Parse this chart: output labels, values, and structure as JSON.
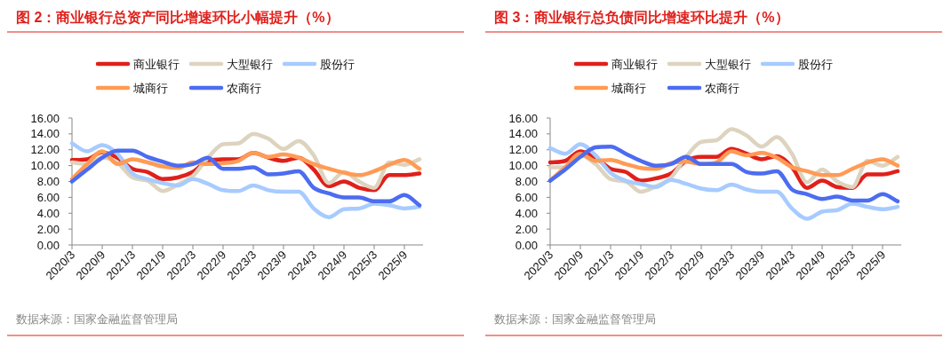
{
  "chart_data": [
    {
      "type": "line",
      "title": "图 2：商业银行总资产同比增速环比小幅提升（%）",
      "annotations": [
        "数据来源：国家金融监督管理局"
      ],
      "categories": [
        "2020/3",
        null,
        "2020/9",
        null,
        "2021/3",
        null,
        "2021/9",
        null,
        "2022/3",
        null,
        "2022/9",
        null,
        "2023/3",
        null,
        "2023/9",
        null,
        "2024/3",
        null,
        "2024/9",
        null,
        "2025/3",
        null,
        "2025/9",
        null
      ],
      "series": [
        {
          "name": "商业银行",
          "color": "#e0201b",
          "values": [
            10.7,
            10.8,
            11.7,
            11.0,
            9.6,
            9.2,
            8.3,
            8.5,
            9.2,
            10.6,
            10.8,
            10.8,
            11.6,
            11.0,
            10.6,
            11.0,
            9.5,
            7.4,
            8.0,
            7.2,
            6.9,
            8.8,
            8.8,
            9.0
          ]
        },
        {
          "name": "大型银行",
          "color": "#ddd3bf",
          "values": [
            10.4,
            10.2,
            11.0,
            10.4,
            8.5,
            8.1,
            6.8,
            7.6,
            8.7,
            11.0,
            12.7,
            12.8,
            14.0,
            13.4,
            12.1,
            13.1,
            11.3,
            7.8,
            9.2,
            8.0,
            7.2,
            10.4,
            10.1,
            10.8
          ]
        },
        {
          "name": "股份行",
          "color": "#a7cbff",
          "values": [
            12.8,
            11.8,
            12.6,
            11.5,
            9.0,
            8.3,
            7.8,
            7.5,
            8.3,
            7.7,
            6.9,
            6.8,
            7.5,
            6.9,
            6.7,
            6.7,
            4.6,
            3.5,
            4.5,
            4.6,
            5.2,
            5.0,
            4.6,
            4.8
          ]
        },
        {
          "name": "城商行",
          "color": "#ff9b55",
          "values": [
            8.3,
            10.2,
            11.8,
            10.2,
            10.8,
            10.4,
            9.9,
            9.7,
            10.4,
            10.2,
            10.3,
            10.6,
            11.6,
            11.1,
            11.4,
            11.0,
            10.2,
            9.6,
            9.1,
            8.8,
            9.3,
            10.1,
            10.7,
            9.6
          ]
        },
        {
          "name": "农商行",
          "color": "#4c6cf0",
          "values": [
            8.0,
            9.5,
            11.0,
            11.9,
            11.9,
            11.1,
            10.5,
            10.0,
            10.2,
            11.0,
            9.6,
            9.6,
            9.8,
            8.9,
            9.0,
            9.3,
            7.2,
            6.5,
            6.0,
            6.0,
            5.5,
            5.5,
            6.3,
            5.0
          ]
        }
      ],
      "ylim": [
        0,
        16
      ],
      "yticks": [
        {
          "value": 0,
          "label": "0.00"
        },
        {
          "value": 2,
          "label": "2.00"
        },
        {
          "value": 4,
          "label": "4.00"
        },
        {
          "value": 6,
          "label": "6.00"
        },
        {
          "value": 8,
          "label": "8.00"
        },
        {
          "value": 10,
          "label": "10.00"
        },
        {
          "value": 12,
          "label": "12.00"
        },
        {
          "value": 14,
          "label": "14.00"
        },
        {
          "value": 16,
          "label": "16.00"
        }
      ],
      "grid": false,
      "legend": "top",
      "marker": "none",
      "line_style": "solid"
    },
    {
      "type": "line",
      "title": "图 3：商业银行总负债同比增速环比提升（%）",
      "annotations": [
        "数据来源：国家金融监督管理局"
      ],
      "categories": [
        "2020/3",
        null,
        "2020/9",
        null,
        "2021/3",
        null,
        "2021/9",
        null,
        "2022/3",
        null,
        "2022/9",
        null,
        "2023/3",
        null,
        "2023/9",
        null,
        "2024/3",
        null,
        "2024/9",
        null,
        "2025/3",
        null,
        "2025/9",
        null
      ],
      "series": [
        {
          "name": "商业银行",
          "color": "#e0201b",
          "values": [
            10.4,
            10.6,
            11.8,
            11.0,
            9.6,
            9.2,
            8.1,
            8.4,
            9.0,
            10.6,
            11.1,
            11.1,
            12.1,
            11.5,
            10.8,
            11.2,
            9.8,
            7.2,
            8.1,
            7.3,
            7.2,
            8.9,
            8.9,
            9.3
          ]
        },
        {
          "name": "大型银行",
          "color": "#ddd3bf",
          "values": [
            9.8,
            9.8,
            11.3,
            10.2,
            8.3,
            8.0,
            6.7,
            7.4,
            8.5,
            11.1,
            13.0,
            13.2,
            14.6,
            13.8,
            12.4,
            13.6,
            11.5,
            7.9,
            9.5,
            8.0,
            7.3,
            10.6,
            10.0,
            11.1
          ]
        },
        {
          "name": "股份行",
          "color": "#a7cbff",
          "values": [
            12.2,
            11.5,
            12.7,
            11.3,
            9.1,
            8.1,
            7.7,
            7.3,
            8.2,
            7.7,
            7.1,
            6.9,
            7.6,
            7.0,
            6.7,
            6.7,
            4.6,
            3.3,
            4.2,
            4.4,
            5.2,
            4.8,
            4.5,
            4.8
          ]
        },
        {
          "name": "城商行",
          "color": "#ff9b55",
          "values": [
            8.1,
            9.8,
            11.5,
            10.6,
            10.7,
            10.2,
            9.7,
            9.6,
            10.3,
            10.5,
            10.2,
            10.4,
            11.8,
            11.3,
            11.6,
            11.0,
            9.8,
            9.3,
            8.8,
            8.8,
            9.6,
            10.4,
            10.8,
            10.0
          ]
        },
        {
          "name": "农商行",
          "color": "#4c6cf0",
          "values": [
            8.1,
            9.5,
            11.1,
            12.3,
            12.4,
            11.5,
            10.6,
            10.0,
            10.2,
            11.1,
            10.2,
            10.2,
            10.2,
            9.2,
            9.0,
            9.3,
            7.0,
            6.4,
            5.8,
            6.1,
            5.6,
            5.6,
            6.4,
            5.5
          ]
        }
      ],
      "ylim": [
        0,
        16
      ],
      "yticks": [
        {
          "value": 0,
          "label": "0.00"
        },
        {
          "value": 2,
          "label": "2.00"
        },
        {
          "value": 4,
          "label": "4.00"
        },
        {
          "value": 6,
          "label": "6.00"
        },
        {
          "value": 8,
          "label": "8.00"
        },
        {
          "value": 10,
          "label": "10.00"
        },
        {
          "value": 12,
          "label": "12.00"
        },
        {
          "value": 14,
          "label": "14.00"
        },
        {
          "value": 16,
          "label": "16.00"
        }
      ],
      "grid": false,
      "legend": "top",
      "marker": "none",
      "line_style": "solid"
    }
  ]
}
